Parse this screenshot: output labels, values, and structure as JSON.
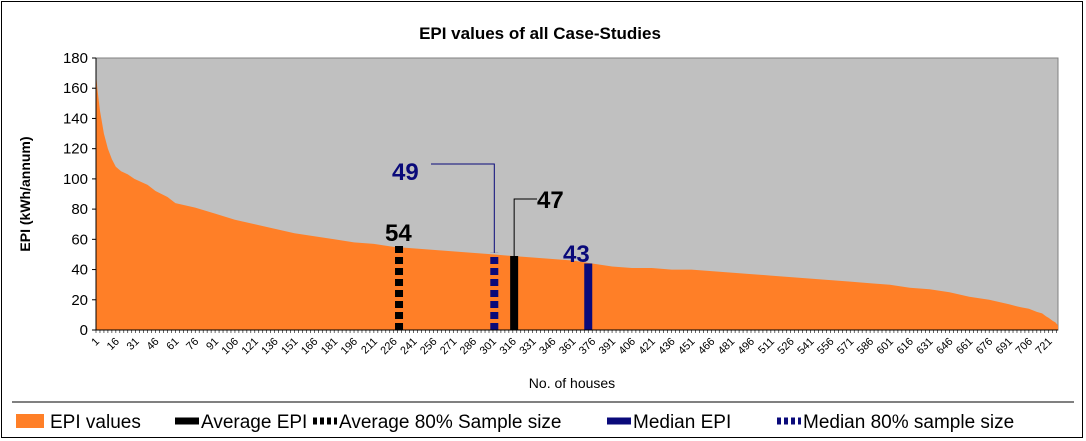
{
  "chart_data": {
    "type": "area",
    "title": "EPI values of all Case-Studies",
    "xlabel": "No. of houses",
    "ylabel": "EPI (kWh/annum)",
    "ylim": [
      0,
      180
    ],
    "yticks": [
      0,
      20,
      40,
      60,
      80,
      100,
      120,
      140,
      160,
      180
    ],
    "xlim": [
      1,
      728
    ],
    "xticks": [
      1,
      16,
      31,
      46,
      61,
      76,
      91,
      106,
      121,
      136,
      151,
      166,
      181,
      196,
      211,
      226,
      241,
      256,
      271,
      286,
      301,
      316,
      331,
      346,
      361,
      376,
      391,
      406,
      421,
      436,
      451,
      466,
      481,
      496,
      511,
      526,
      541,
      556,
      571,
      586,
      601,
      616,
      631,
      646,
      661,
      676,
      691,
      706,
      721
    ],
    "series": [
      {
        "name": "EPI values",
        "color": "#ff7f27",
        "x": [
          1,
          2,
          4,
          7,
          10,
          13,
          16,
          20,
          25,
          30,
          40,
          46,
          55,
          61,
          76,
          91,
          106,
          121,
          136,
          151,
          166,
          181,
          196,
          211,
          226,
          241,
          256,
          271,
          286,
          301,
          316,
          331,
          346,
          361,
          376,
          391,
          406,
          421,
          436,
          451,
          466,
          481,
          496,
          511,
          526,
          541,
          556,
          571,
          586,
          601,
          616,
          631,
          646,
          661,
          676,
          691,
          700,
          706,
          712,
          716,
          719,
          721,
          724,
          726,
          728
        ],
        "y": [
          170,
          160,
          145,
          130,
          120,
          113,
          108,
          105,
          103,
          100,
          96,
          92,
          88,
          84,
          81,
          77,
          73,
          70,
          67,
          64,
          62,
          60,
          58,
          57,
          55,
          54,
          53,
          52,
          51,
          50,
          49,
          48,
          47,
          46,
          44,
          42,
          41,
          41,
          40,
          40,
          39,
          38,
          37,
          36,
          35,
          34,
          33,
          32,
          31,
          30,
          28,
          27,
          25,
          22,
          20,
          17,
          15,
          14,
          12,
          11,
          9,
          8,
          6,
          5,
          3
        ]
      }
    ],
    "markers": [
      {
        "name": "Average EPI",
        "x": 317,
        "value": 49,
        "label": "47",
        "color": "#000000",
        "style": "solid"
      },
      {
        "name": "Average 80% Sample size",
        "x": 230,
        "value": 56,
        "label": "54",
        "color": "#000000",
        "style": "dashed"
      },
      {
        "name": "Median EPI",
        "x": 373,
        "value": 44,
        "label": "43",
        "color": "#0a0a7a",
        "style": "solid"
      },
      {
        "name": "Median 80% sample size",
        "x": 302,
        "value": 51,
        "label": "49",
        "color": "#0a0a7a",
        "style": "dashed"
      }
    ],
    "legend_position": "bottom",
    "grid": false,
    "plot_background": "#c0c0c0"
  }
}
